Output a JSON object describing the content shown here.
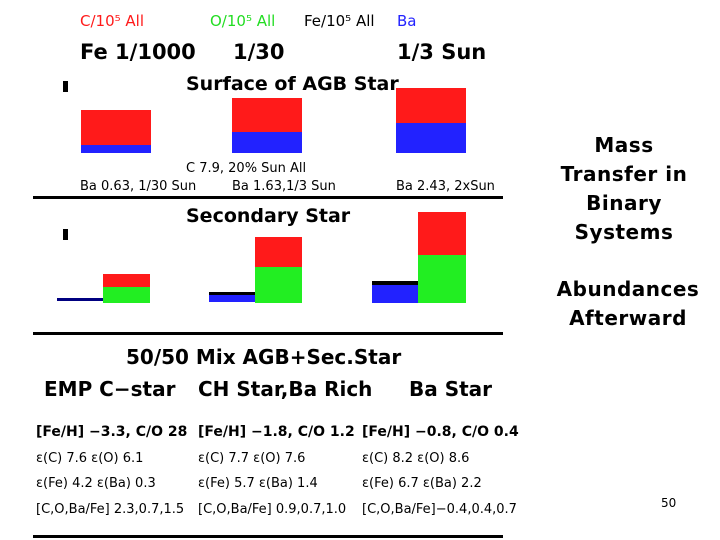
{
  "legend": {
    "c": "C/10⁵ All",
    "o": "O/10⁵ All",
    "fe": "Fe/10⁵ All",
    "ba": "Ba",
    "colors": {
      "c": "#ff1a1a",
      "o": "#22dd22",
      "fe": "#000000",
      "ba": "#2222ff"
    }
  },
  "fe_row": {
    "col1": "Fe 1/1000",
    "col2": "1/30",
    "col3": "1/3 Sun"
  },
  "section1": {
    "title": "Surface of AGB Star",
    "note_c": "C 7.9, 20% Sun All",
    "ba1": "Ba 0.63, 1/30 Sun",
    "ba2": "Ba 1.63,1/3 Sun",
    "ba3": "Ba 2.43, 2xSun"
  },
  "section2": {
    "title": "Secondary Star"
  },
  "section3": {
    "title": "50/50 Mix AGB+Sec.Star",
    "types": [
      "EMP C−star",
      "CH Star,Ba Rich",
      "Ba Star"
    ],
    "feh": [
      "[Fe/H] −3.3, C/O 28",
      "[Fe/H] −1.8, C/O 1.2",
      "[Fe/H] −0.8, C/O 0.4"
    ],
    "eco": [
      "ε(C) 7.6 ε(O) 6.1",
      "ε(C) 7.7 ε(O) 7.6",
      "ε(C) 8.2 ε(O) 8.6"
    ],
    "efeba": [
      "ε(Fe) 4.2 ε(Ba) 0.3",
      "ε(Fe) 5.7 ε(Ba) 1.4",
      "ε(Fe) 6.7 ε(Ba) 2.2"
    ],
    "ratios": [
      "[C,O,Ba/Fe] 2.3,0.7,1.5",
      "[C,O,Ba/Fe] 0.9,0.7,1.0",
      "[C,O,Ba/Fe]−0.4,0.4,0.7"
    ]
  },
  "side": {
    "title_lines": [
      "Mass",
      "Transfer in",
      "Binary",
      "Systems"
    ],
    "sub_lines": [
      "Abundances",
      "Afterward"
    ]
  },
  "page_number": "50"
}
